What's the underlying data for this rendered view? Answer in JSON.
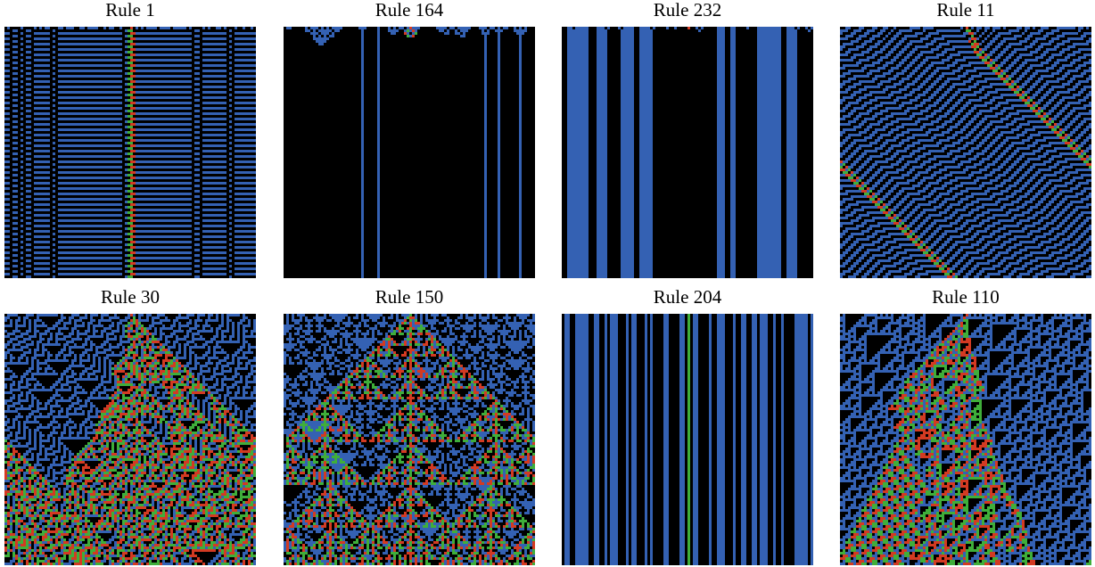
{
  "panels": [
    {
      "title": "Rule 1"
    },
    {
      "title": "Rule 164"
    },
    {
      "title": "Rule 232"
    },
    {
      "title": "Rule 11"
    },
    {
      "title": "Rule 30"
    },
    {
      "title": "Rule 150"
    },
    {
      "title": "Rule 204"
    },
    {
      "title": "Rule 110"
    }
  ]
}
